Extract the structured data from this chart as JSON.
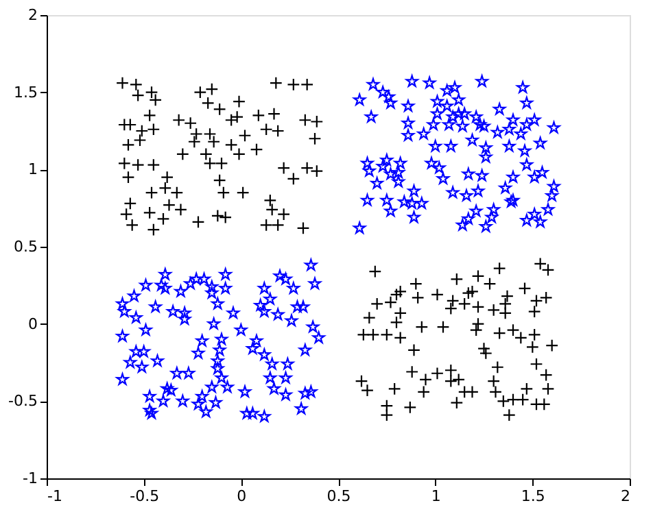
{
  "chart_data": {
    "type": "scatter",
    "xlim": [
      -1,
      2
    ],
    "ylim": [
      -1,
      2
    ],
    "xticks": [
      -1,
      -0.5,
      0,
      0.5,
      1,
      1.5,
      2
    ],
    "yticks": [
      -1,
      -0.5,
      0,
      0.5,
      1,
      1.5,
      2
    ],
    "grid": false,
    "series": [
      {
        "color": "#000000",
        "marker": "cross",
        "x": [
          -0.61,
          -0.54,
          -0.53,
          -0.46,
          -0.44,
          -0.21,
          -0.15,
          -0.17,
          -0.11,
          -0.01,
          -0.02,
          -0.05,
          0.09,
          0.17,
          0.27,
          0.34,
          0.18,
          -0.47,
          -0.6,
          -0.57,
          -0.51,
          -0.45,
          -0.32,
          -0.26,
          -0.58,
          -0.52,
          -0.23,
          -0.16,
          -0.24,
          -0.14,
          -0.05,
          0.02,
          0.13,
          0.19,
          0.33,
          0.39,
          0.38,
          -0.3,
          -0.18,
          -0.16,
          -0.1,
          -0.01,
          0.08,
          -0.6,
          -0.53,
          -0.45,
          -0.58,
          -0.38,
          0.22,
          0.27,
          0.34,
          0.39,
          -0.39,
          -0.33,
          -0.46,
          -0.11,
          -0.09,
          0.01,
          -0.57,
          -0.59,
          -0.47,
          -0.37,
          -0.31,
          -0.4,
          -0.22,
          -0.12,
          -0.08,
          0.15,
          0.16,
          0.22,
          -0.56,
          -0.45,
          0.13,
          0.32,
          0.19,
          0.69,
          0.9,
          1.11,
          1.22,
          1.33,
          1.54,
          1.58,
          0.82,
          0.8,
          0.91,
          1.01,
          1.09,
          1.17,
          1.19,
          1.28,
          1.37,
          1.46,
          1.52,
          1.57,
          0.7,
          0.77,
          0.82,
          1.08,
          1.15,
          1.22,
          1.3,
          1.36,
          1.36,
          1.51,
          0.66,
          0.8,
          0.93,
          1.04,
          1.22,
          0.63,
          0.68,
          0.75,
          0.82,
          1.21,
          1.33,
          1.4,
          1.44,
          1.51,
          0.89,
          1.25,
          1.26,
          1.6,
          1.5,
          0.88,
          0.95,
          1.01,
          1.08,
          1.12,
          1.08,
          1.32,
          1.3,
          1.52,
          1.57,
          0.62,
          0.65,
          0.79,
          0.94,
          1.15,
          1.19,
          1.31,
          1.47,
          1.58,
          0.75,
          0.87,
          0.75,
          1.11,
          1.35,
          1.4,
          1.45,
          1.52,
          1.56,
          1.38
        ],
        "values": [
          1.56,
          1.55,
          1.48,
          1.5,
          1.45,
          1.5,
          1.52,
          1.43,
          1.39,
          1.44,
          1.34,
          1.32,
          1.35,
          1.36,
          1.55,
          1.55,
          1.56,
          1.35,
          1.29,
          1.29,
          1.25,
          1.26,
          1.32,
          1.3,
          1.16,
          1.19,
          1.23,
          1.23,
          1.18,
          1.18,
          1.16,
          1.22,
          1.26,
          1.25,
          1.32,
          1.31,
          1.2,
          1.1,
          1.1,
          1.04,
          1.04,
          1.1,
          1.13,
          1.04,
          1.03,
          1.03,
          0.95,
          0.95,
          1.01,
          0.94,
          1.01,
          0.99,
          0.88,
          0.85,
          0.85,
          0.93,
          0.85,
          0.85,
          0.78,
          0.71,
          0.72,
          0.77,
          0.74,
          0.68,
          0.66,
          0.7,
          0.69,
          0.8,
          0.74,
          0.71,
          0.64,
          0.61,
          0.64,
          0.62,
          0.64,
          0.34,
          0.26,
          0.29,
          0.31,
          0.36,
          0.39,
          0.35,
          0.21,
          0.19,
          0.17,
          0.19,
          0.15,
          0.2,
          0.21,
          0.26,
          0.18,
          0.23,
          0.15,
          0.17,
          0.13,
          0.14,
          0.07,
          0.1,
          0.13,
          0.11,
          0.09,
          0.13,
          0.07,
          0.08,
          0.04,
          0.01,
          -0.02,
          -0.02,
          0,
          -0.07,
          -0.07,
          -0.07,
          -0.09,
          -0.04,
          -0.06,
          -0.04,
          -0.09,
          -0.07,
          -0.17,
          -0.16,
          -0.19,
          -0.14,
          -0.15,
          -0.31,
          -0.36,
          -0.32,
          -0.3,
          -0.36,
          -0.37,
          -0.28,
          -0.37,
          -0.26,
          -0.33,
          -0.37,
          -0.43,
          -0.42,
          -0.44,
          -0.44,
          -0.44,
          -0.44,
          -0.42,
          -0.42,
          -0.53,
          -0.54,
          -0.59,
          -0.51,
          -0.5,
          -0.49,
          -0.49,
          -0.52,
          -0.52,
          -0.59
        ]
      },
      {
        "color": "#0000ff",
        "marker": "star",
        "x": [
          0.68,
          0.88,
          0.97,
          1.06,
          1.1,
          1.24,
          1.45,
          0.61,
          0.73,
          0.76,
          0.77,
          0.86,
          1.01,
          1.06,
          1.12,
          1.47,
          0.67,
          1.01,
          1.09,
          1.12,
          1.15,
          1.21,
          1.33,
          1.4,
          1.51,
          1.61,
          0.86,
          0.86,
          0.94,
          0.99,
          1.07,
          1.14,
          1.23,
          1.25,
          1.32,
          1.38,
          1.44,
          1.47,
          1.0,
          1.08,
          1.19,
          1.26,
          1.26,
          1.38,
          1.46,
          1.54,
          0.65,
          0.66,
          0.73,
          0.75,
          0.82,
          0.98,
          1.02,
          0.77,
          0.81,
          0.81,
          1.04,
          1.17,
          1.24,
          1.4,
          1.47,
          1.51,
          1.55,
          0.7,
          0.89,
          1.09,
          1.16,
          1.22,
          1.36,
          1.61,
          0.65,
          0.75,
          0.84,
          0.88,
          0.93,
          1.39,
          1.4,
          1.6,
          0.77,
          0.89,
          1.21,
          1.3,
          1.29,
          1.58,
          1.51,
          1.54,
          1.47,
          1.17,
          1.14,
          1.26,
          0.61,
          0.36,
          -0.39,
          -0.49,
          -0.41,
          -0.39,
          -0.31,
          -0.26,
          -0.23,
          -0.19,
          -0.15,
          -0.15,
          -0.08,
          -0.08,
          0.2,
          0.23,
          0.27,
          0.38,
          -0.61,
          -0.55,
          -0.6,
          -0.54,
          -0.44,
          -0.35,
          -0.29,
          -0.29,
          -0.12,
          -0.04,
          0.1,
          0.12,
          0.15,
          0.12,
          0.19,
          0.29,
          0.32,
          0.26,
          -0.14,
          -0.49,
          -0.61,
          0.0,
          0.08,
          0.06,
          0.37,
          0.4,
          -0.2,
          -0.1,
          -0.11,
          -0.12,
          -0.22,
          0.12,
          0.16,
          0.24,
          0.33,
          -0.54,
          -0.5,
          -0.57,
          -0.51,
          -0.43,
          -0.61,
          -0.33,
          -0.27,
          -0.12,
          -0.1,
          0.15,
          0.23,
          -0.38,
          -0.36,
          -0.15,
          -0.07,
          0.02,
          0.17,
          0.33,
          0.36,
          -0.47,
          -0.4,
          -0.3,
          -0.2,
          -0.13,
          -0.22,
          -0.18,
          -0.46,
          -0.47,
          0.03,
          0.06,
          0.12,
          0.31,
          0.23
        ],
        "values": [
          1.55,
          1.57,
          1.56,
          1.51,
          1.53,
          1.57,
          1.53,
          1.45,
          1.5,
          1.47,
          1.43,
          1.41,
          1.44,
          1.41,
          1.45,
          1.43,
          1.34,
          1.36,
          1.34,
          1.36,
          1.36,
          1.34,
          1.39,
          1.32,
          1.32,
          1.27,
          1.3,
          1.22,
          1.23,
          1.29,
          1.29,
          1.28,
          1.29,
          1.28,
          1.24,
          1.26,
          1.23,
          1.29,
          1.15,
          1.15,
          1.19,
          1.14,
          1.08,
          1.15,
          1.12,
          1.17,
          1.04,
          0.99,
          1.02,
          1.06,
          1.04,
          1.04,
          1.01,
          0.97,
          0.98,
          0.92,
          0.94,
          0.97,
          0.96,
          0.95,
          1.03,
          0.95,
          0.98,
          0.91,
          0.86,
          0.85,
          0.83,
          0.86,
          0.88,
          0.89,
          0.8,
          0.8,
          0.79,
          0.78,
          0.78,
          0.79,
          0.8,
          0.83,
          0.73,
          0.69,
          0.73,
          0.74,
          0.69,
          0.74,
          0.71,
          0.66,
          0.67,
          0.68,
          0.64,
          0.63,
          0.62,
          0.38,
          0.32,
          0.25,
          0.25,
          0.23,
          0.21,
          0.26,
          0.29,
          0.29,
          0.24,
          0.2,
          0.32,
          0.23,
          0.31,
          0.29,
          0.23,
          0.26,
          0.13,
          0.18,
          0.08,
          0.04,
          0.11,
          0.08,
          0.07,
          0.03,
          0.13,
          0.07,
          0.12,
          0.23,
          0.16,
          0.08,
          0.06,
          0.11,
          0.11,
          0.02,
          0.0,
          -0.04,
          -0.08,
          -0.04,
          -0.11,
          -0.16,
          -0.02,
          -0.09,
          -0.11,
          -0.1,
          -0.17,
          -0.24,
          -0.19,
          -0.2,
          -0.26,
          -0.26,
          -0.17,
          -0.18,
          -0.18,
          -0.25,
          -0.28,
          -0.24,
          -0.36,
          -0.32,
          -0.32,
          -0.29,
          -0.35,
          -0.35,
          -0.35,
          -0.42,
          -0.43,
          -0.41,
          -0.41,
          -0.44,
          -0.42,
          -0.45,
          -0.44,
          -0.47,
          -0.5,
          -0.5,
          -0.47,
          -0.51,
          -0.52,
          -0.57,
          -0.58,
          -0.56,
          -0.58,
          -0.58,
          -0.6,
          -0.55,
          -0.46
        ]
      }
    ]
  }
}
